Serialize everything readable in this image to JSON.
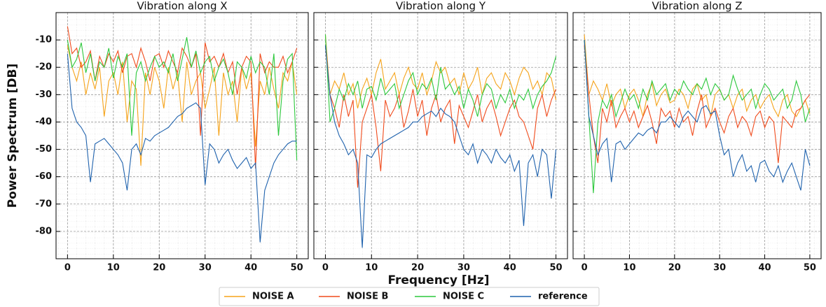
{
  "chart_data": [
    {
      "type": "line",
      "title": "Vibration along X",
      "x": [
        0,
        1,
        2,
        3,
        4,
        5,
        6,
        7,
        8,
        9,
        10,
        11,
        12,
        13,
        14,
        15,
        16,
        17,
        18,
        19,
        20,
        21,
        22,
        23,
        24,
        25,
        26,
        27,
        28,
        29,
        30,
        31,
        32,
        33,
        34,
        35,
        36,
        37,
        38,
        39,
        40,
        41,
        42,
        43,
        44,
        45,
        46,
        47,
        48,
        49,
        50
      ],
      "xlim": [
        -2.5,
        52.5
      ],
      "ylim": [
        -90,
        0
      ],
      "xticks": [
        0,
        10,
        20,
        30,
        40,
        50
      ],
      "yticks": [
        -80,
        -70,
        -60,
        -50,
        -40,
        -30,
        -20,
        -10
      ],
      "grid": true,
      "series": [
        {
          "name": "NOISE A",
          "color": "#f5a31a",
          "values": [
            -12,
            -20,
            -25,
            -18,
            -30,
            -22,
            -28,
            -20,
            -38,
            -25,
            -22,
            -30,
            -18,
            -40,
            -25,
            -28,
            -56,
            -22,
            -30,
            -20,
            -25,
            -35,
            -20,
            -28,
            -22,
            -40,
            -18,
            -30,
            -25,
            -22,
            -35,
            -28,
            -20,
            -45,
            -22,
            -30,
            -25,
            -40,
            -20,
            -28,
            -22,
            -49,
            -25,
            -30,
            -20,
            -28,
            -35,
            -22,
            -25,
            -18,
            -30
          ]
        },
        {
          "name": "NOISE B",
          "color": "#f04b1c",
          "values": [
            -5,
            -15,
            -13,
            -20,
            -18,
            -14,
            -25,
            -16,
            -20,
            -15,
            -18,
            -14,
            -22,
            -16,
            -15,
            -20,
            -13,
            -18,
            -25,
            -16,
            -15,
            -20,
            -14,
            -18,
            -22,
            -13,
            -16,
            -20,
            -15,
            -45,
            -11,
            -18,
            -16,
            -20,
            -15,
            -22,
            -18,
            -30,
            -20,
            -16,
            -18,
            -57,
            -15,
            -22,
            -18,
            -20,
            -20,
            -16,
            -22,
            -18,
            -13
          ]
        },
        {
          "name": "NOISE C",
          "color": "#2cc83c",
          "values": [
            -10,
            -20,
            -17,
            -11,
            -22,
            -15,
            -25,
            -18,
            -20,
            -13,
            -24,
            -16,
            -20,
            -15,
            -45,
            -22,
            -18,
            -25,
            -20,
            -16,
            -20,
            -18,
            -22,
            -15,
            -25,
            -17,
            -9,
            -20,
            -14,
            -22,
            -18,
            -16,
            -25,
            -20,
            -17,
            -22,
            -30,
            -18,
            -20,
            -24,
            -16,
            -22,
            -18,
            -20,
            -30,
            -15,
            -45,
            -25,
            -17,
            -15,
            -54
          ]
        },
        {
          "name": "reference",
          "color": "#1f62ad",
          "values": [
            -15,
            -35,
            -40,
            -42,
            -45,
            -62,
            -48,
            -47,
            -46,
            -48,
            -50,
            -52,
            -55,
            -65,
            -50,
            -48,
            -52,
            -46,
            -47,
            -45,
            -44,
            -43,
            -42,
            -40,
            -38,
            -37,
            -35,
            -34,
            -33,
            -35,
            -63,
            -48,
            -50,
            -55,
            -52,
            -50,
            -54,
            -57,
            -55,
            -53,
            -57,
            -55,
            -84,
            -65,
            -60,
            -55,
            -52,
            -50,
            -48,
            -47,
            -47
          ]
        }
      ]
    },
    {
      "type": "line",
      "title": "Vibration along Y",
      "x": [
        0,
        1,
        2,
        3,
        4,
        5,
        6,
        7,
        8,
        9,
        10,
        11,
        12,
        13,
        14,
        15,
        16,
        17,
        18,
        19,
        20,
        21,
        22,
        23,
        24,
        25,
        26,
        27,
        28,
        29,
        30,
        31,
        32,
        33,
        34,
        35,
        36,
        37,
        38,
        39,
        40,
        41,
        42,
        43,
        44,
        45,
        46,
        47,
        48,
        49,
        50
      ],
      "xlim": [
        -2.5,
        52.5
      ],
      "ylim": [
        -90,
        0
      ],
      "xticks": [
        0,
        10,
        20,
        30,
        40,
        50
      ],
      "yticks": [
        -80,
        -70,
        -60,
        -50,
        -40,
        -30,
        -20,
        -10
      ],
      "grid": true,
      "series": [
        {
          "name": "NOISE A",
          "color": "#f5a31a",
          "values": [
            -8,
            -30,
            -25,
            -28,
            -22,
            -30,
            -26,
            -35,
            -28,
            -24,
            -30,
            -22,
            -17,
            -28,
            -25,
            -22,
            -30,
            -24,
            -20,
            -26,
            -28,
            -22,
            -30,
            -25,
            -18,
            -22,
            -20,
            -26,
            -24,
            -30,
            -22,
            -28,
            -25,
            -20,
            -30,
            -24,
            -22,
            -26,
            -28,
            -22,
            -25,
            -30,
            -24,
            -20,
            -22,
            -28,
            -25,
            -30,
            -22,
            -24,
            -32
          ]
        },
        {
          "name": "NOISE B",
          "color": "#f04b1c",
          "values": [
            -12,
            -30,
            -35,
            -42,
            -30,
            -38,
            -32,
            -64,
            -40,
            -35,
            -30,
            -42,
            -58,
            -32,
            -38,
            -35,
            -30,
            -42,
            -36,
            -28,
            -38,
            -32,
            -45,
            -35,
            -30,
            -40,
            -35,
            -32,
            -48,
            -34,
            -38,
            -42,
            -36,
            -30,
            -40,
            -35,
            -32,
            -38,
            -45,
            -40,
            -35,
            -32,
            -38,
            -40,
            -45,
            -50,
            -35,
            -30,
            -38,
            -32,
            -28
          ]
        },
        {
          "name": "NOISE C",
          "color": "#2cc83c",
          "values": [
            -8,
            -40,
            -35,
            -28,
            -32,
            -26,
            -30,
            -25,
            -35,
            -28,
            -27,
            -32,
            -24,
            -30,
            -28,
            -26,
            -35,
            -30,
            -25,
            -22,
            -30,
            -26,
            -28,
            -24,
            -32,
            -20,
            -28,
            -26,
            -30,
            -27,
            -35,
            -28,
            -32,
            -38,
            -30,
            -26,
            -28,
            -35,
            -30,
            -33,
            -28,
            -35,
            -30,
            -32,
            -28,
            -35,
            -30,
            -27,
            -25,
            -22,
            -16
          ]
        },
        {
          "name": "reference",
          "color": "#1f62ad",
          "values": [
            -12,
            -30,
            -40,
            -45,
            -48,
            -52,
            -50,
            -55,
            -86,
            -52,
            -53,
            -50,
            -48,
            -47,
            -46,
            -45,
            -44,
            -43,
            -42,
            -40,
            -40,
            -38,
            -37,
            -36,
            -38,
            -35,
            -37,
            -38,
            -40,
            -45,
            -50,
            -52,
            -48,
            -55,
            -50,
            -52,
            -55,
            -50,
            -53,
            -55,
            -52,
            -58,
            -54,
            -78,
            -55,
            -52,
            -60,
            -50,
            -52,
            -68,
            -50
          ]
        }
      ]
    },
    {
      "type": "line",
      "title": "Vibration along Z",
      "x": [
        0,
        1,
        2,
        3,
        4,
        5,
        6,
        7,
        8,
        9,
        10,
        11,
        12,
        13,
        14,
        15,
        16,
        17,
        18,
        19,
        20,
        21,
        22,
        23,
        24,
        25,
        26,
        27,
        28,
        29,
        30,
        31,
        32,
        33,
        34,
        35,
        36,
        37,
        38,
        39,
        40,
        41,
        42,
        43,
        44,
        45,
        46,
        47,
        48,
        49,
        50
      ],
      "xlim": [
        -2.5,
        52.5
      ],
      "ylim": [
        -90,
        0
      ],
      "xticks": [
        0,
        10,
        20,
        30,
        40,
        50
      ],
      "yticks": [
        -80,
        -70,
        -60,
        -50,
        -40,
        -30,
        -20,
        -10
      ],
      "grid": true,
      "series": [
        {
          "name": "NOISE A",
          "color": "#f5a31a",
          "values": [
            -8,
            -30,
            -25,
            -28,
            -32,
            -26,
            -34,
            -30,
            -28,
            -35,
            -30,
            -28,
            -32,
            -38,
            -30,
            -26,
            -34,
            -30,
            -28,
            -33,
            -32,
            -28,
            -30,
            -35,
            -28,
            -26,
            -32,
            -30,
            -38,
            -30,
            -28,
            -32,
            -30,
            -35,
            -30,
            -28,
            -36,
            -32,
            -30,
            -35,
            -32,
            -30,
            -35,
            -38,
            -32,
            -30,
            -36,
            -38,
            -35,
            -32,
            -37
          ]
        },
        {
          "name": "NOISE B",
          "color": "#f04b1c",
          "values": [
            -12,
            -30,
            -45,
            -55,
            -35,
            -40,
            -32,
            -42,
            -38,
            -35,
            -40,
            -36,
            -42,
            -38,
            -34,
            -40,
            -48,
            -35,
            -38,
            -36,
            -42,
            -35,
            -40,
            -38,
            -45,
            -36,
            -30,
            -42,
            -38,
            -35,
            -40,
            -44,
            -38,
            -35,
            -42,
            -38,
            -40,
            -45,
            -38,
            -36,
            -42,
            -38,
            -40,
            -55,
            -38,
            -40,
            -42,
            -36,
            -35,
            -32,
            -30
          ]
        },
        {
          "name": "NOISE C",
          "color": "#2cc83c",
          "values": [
            -10,
            -38,
            -66,
            -40,
            -32,
            -35,
            -30,
            -38,
            -33,
            -28,
            -32,
            -30,
            -35,
            -28,
            -32,
            -25,
            -30,
            -28,
            -26,
            -32,
            -28,
            -30,
            -25,
            -28,
            -30,
            -26,
            -28,
            -24,
            -30,
            -26,
            -28,
            -32,
            -30,
            -23,
            -28,
            -32,
            -30,
            -28,
            -35,
            -30,
            -26,
            -28,
            -32,
            -30,
            -28,
            -35,
            -32,
            -25,
            -30,
            -40,
            -35
          ]
        },
        {
          "name": "reference",
          "color": "#1f62ad",
          "values": [
            -10,
            -38,
            -45,
            -52,
            -48,
            -46,
            -62,
            -48,
            -47,
            -50,
            -48,
            -46,
            -44,
            -45,
            -43,
            -42,
            -44,
            -40,
            -40,
            -38,
            -40,
            -42,
            -38,
            -36,
            -38,
            -40,
            -35,
            -34,
            -37,
            -36,
            -45,
            -52,
            -50,
            -60,
            -55,
            -52,
            -58,
            -56,
            -62,
            -55,
            -54,
            -58,
            -60,
            -56,
            -62,
            -58,
            -55,
            -60,
            -65,
            -50,
            -56
          ]
        }
      ]
    }
  ],
  "xlabel": "Frequency [Hz]",
  "ylabel": "Power Spectrum [DB]"
}
